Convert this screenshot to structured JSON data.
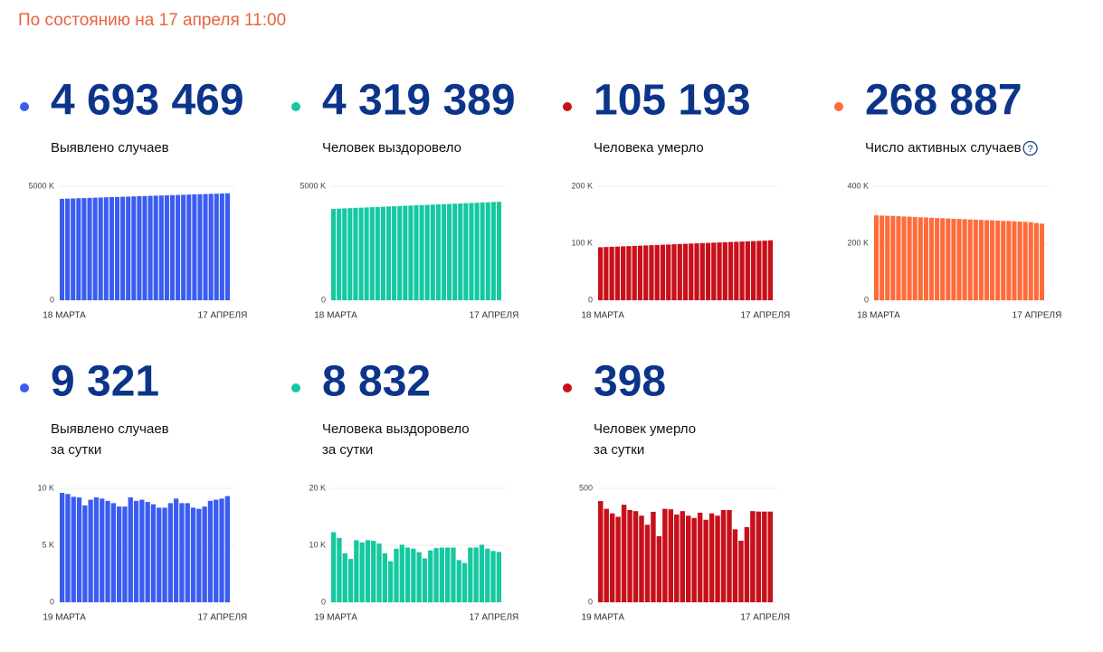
{
  "header": {
    "title": "По состоянию на 17 апреля 11:00"
  },
  "chart_data": [
    {
      "type": "bar",
      "headline": "4 693 469",
      "label": "Выявлено случаев",
      "color": "#3b5cf0",
      "categories": [
        "18 МАРТА",
        null,
        null,
        null,
        null,
        null,
        null,
        null,
        null,
        null,
        null,
        null,
        null,
        null,
        null,
        null,
        null,
        null,
        null,
        null,
        null,
        null,
        null,
        null,
        null,
        null,
        null,
        null,
        null,
        null,
        "17 АПРЕЛЯ"
      ],
      "values": [
        4450000,
        4458100,
        4466200,
        4474300,
        4482400,
        4490500,
        4498600,
        4506700,
        4514800,
        4522900,
        4531000,
        4539100,
        4547200,
        4555300,
        4563400,
        4571500,
        4579600,
        4587700,
        4595800,
        4603900,
        4612000,
        4620100,
        4628200,
        4636300,
        4644400,
        4652500,
        4660600,
        4668700,
        4676800,
        4684900,
        4693469
      ],
      "ylim": [
        0,
        5000000
      ],
      "yticks": [
        0,
        {
          "value": 5000000,
          "label": "5000 K"
        }
      ]
    },
    {
      "type": "bar",
      "headline": "4 319 389",
      "label": "Человек выздоровело",
      "color": "#14c8a0",
      "categories": [
        "18 МАРТА",
        null,
        null,
        null,
        null,
        null,
        null,
        null,
        null,
        null,
        null,
        null,
        null,
        null,
        null,
        null,
        null,
        null,
        null,
        null,
        null,
        null,
        null,
        null,
        null,
        null,
        null,
        null,
        null,
        null,
        "17 АПРЕЛЯ"
      ],
      "values": [
        4010000,
        4020300,
        4030600,
        4040900,
        4051200,
        4061500,
        4071800,
        4082100,
        4092400,
        4102700,
        4113000,
        4123300,
        4133600,
        4143900,
        4154200,
        4164500,
        4174800,
        4185100,
        4195400,
        4205700,
        4216000,
        4226300,
        4236600,
        4246900,
        4257200,
        4267500,
        4277800,
        4288100,
        4298400,
        4308700,
        4319389
      ],
      "ylim": [
        0,
        5000000
      ],
      "yticks": [
        0,
        {
          "value": 5000000,
          "label": "5000 K"
        }
      ]
    },
    {
      "type": "bar",
      "headline": "105 193",
      "label": "Человека умерло",
      "color": "#c8101a",
      "categories": [
        "18 МАРТА",
        null,
        null,
        null,
        null,
        null,
        null,
        null,
        null,
        null,
        null,
        null,
        null,
        null,
        null,
        null,
        null,
        null,
        null,
        null,
        null,
        null,
        null,
        null,
        null,
        null,
        null,
        null,
        null,
        null,
        "17 АПРЕЛЯ"
      ],
      "values": [
        93000,
        93400,
        93800,
        94200,
        94600,
        95000,
        95400,
        95800,
        96200,
        96600,
        97000,
        97400,
        97800,
        98200,
        98600,
        99000,
        99400,
        99800,
        100200,
        100600,
        101000,
        101400,
        101800,
        102200,
        102600,
        103000,
        103400,
        103800,
        104200,
        104600,
        105193
      ],
      "ylim": [
        0,
        200000
      ],
      "yticks": [
        0,
        {
          "value": 100000,
          "label": "100 K"
        },
        {
          "value": 200000,
          "label": "200 K"
        }
      ]
    },
    {
      "type": "bar",
      "headline": "268 887",
      "label": "Число активных случаев",
      "help": "?",
      "color": "#ff6b3a",
      "categories": [
        "18 МАРТА",
        null,
        null,
        null,
        null,
        null,
        null,
        null,
        null,
        null,
        null,
        null,
        null,
        null,
        null,
        null,
        null,
        null,
        null,
        null,
        null,
        null,
        null,
        null,
        null,
        null,
        null,
        null,
        null,
        null,
        "17 АПРЕЛЯ"
      ],
      "values": [
        298000,
        297000,
        296500,
        296000,
        295000,
        294000,
        293500,
        292000,
        291000,
        290500,
        289500,
        288500,
        288000,
        287000,
        286000,
        285500,
        284500,
        283500,
        283000,
        282000,
        281000,
        280500,
        279500,
        278500,
        278000,
        277000,
        276000,
        275000,
        274000,
        271000,
        268887
      ],
      "ylim": [
        0,
        400000
      ],
      "yticks": [
        0,
        {
          "value": 200000,
          "label": "200 K"
        },
        {
          "value": 400000,
          "label": "400 K"
        }
      ]
    },
    {
      "type": "bar",
      "headline": "9 321",
      "label": "Выявлено случаев",
      "sublabel": "за сутки",
      "color": "#3b5cf0",
      "categories": [
        "19 МАРТА",
        null,
        null,
        null,
        null,
        null,
        null,
        null,
        null,
        null,
        null,
        null,
        null,
        null,
        null,
        null,
        null,
        null,
        null,
        null,
        null,
        null,
        null,
        null,
        null,
        null,
        null,
        null,
        null,
        "17 АПРЕЛЯ"
      ],
      "values": [
        9600,
        9500,
        9250,
        9200,
        8500,
        9000,
        9200,
        9100,
        8900,
        8700,
        8400,
        8400,
        9200,
        8900,
        9000,
        8800,
        8600,
        8300,
        8300,
        8700,
        9100,
        8700,
        8700,
        8300,
        8200,
        8400,
        8900,
        9000,
        9100,
        9321
      ],
      "ylim": [
        0,
        10000
      ],
      "yticks": [
        0,
        {
          "value": 5000,
          "label": "5 K"
        },
        {
          "value": 10000,
          "label": "10 K"
        }
      ]
    },
    {
      "type": "bar",
      "headline": "8 832",
      "label": "Человека выздоровело",
      "sublabel": "за сутки",
      "color": "#14c8a0",
      "categories": [
        "19 МАРТА",
        null,
        null,
        null,
        null,
        null,
        null,
        null,
        null,
        null,
        null,
        null,
        null,
        null,
        null,
        null,
        null,
        null,
        null,
        null,
        null,
        null,
        null,
        null,
        null,
        null,
        null,
        null,
        null,
        "17 АПРЕЛЯ"
      ],
      "values": [
        12300,
        11300,
        8600,
        7600,
        10900,
        10500,
        10900,
        10800,
        10300,
        8600,
        7200,
        9400,
        10100,
        9600,
        9400,
        8800,
        7700,
        9100,
        9500,
        9600,
        9600,
        9600,
        7400,
        6900,
        9600,
        9600,
        10100,
        9400,
        9000,
        8832
      ],
      "ylim": [
        0,
        20000
      ],
      "yticks": [
        0,
        {
          "value": 10000,
          "label": "10 K"
        },
        {
          "value": 20000,
          "label": "20 K"
        }
      ]
    },
    {
      "type": "bar",
      "headline": "398",
      "label": "Человек умерло",
      "sublabel": "за сутки",
      "color": "#c8101a",
      "categories": [
        "19 МАРТА",
        null,
        null,
        null,
        null,
        null,
        null,
        null,
        null,
        null,
        null,
        null,
        null,
        null,
        null,
        null,
        null,
        null,
        null,
        null,
        null,
        null,
        null,
        null,
        null,
        null,
        null,
        null,
        null,
        "17 АПРЕЛЯ"
      ],
      "values": [
        444,
        410,
        390,
        375,
        428,
        405,
        400,
        380,
        340,
        397,
        290,
        410,
        408,
        385,
        400,
        380,
        370,
        393,
        362,
        390,
        380,
        405,
        405,
        320,
        270,
        330,
        400,
        398,
        398,
        398
      ],
      "ylim": [
        0,
        500
      ],
      "yticks": [
        0,
        500
      ]
    }
  ]
}
